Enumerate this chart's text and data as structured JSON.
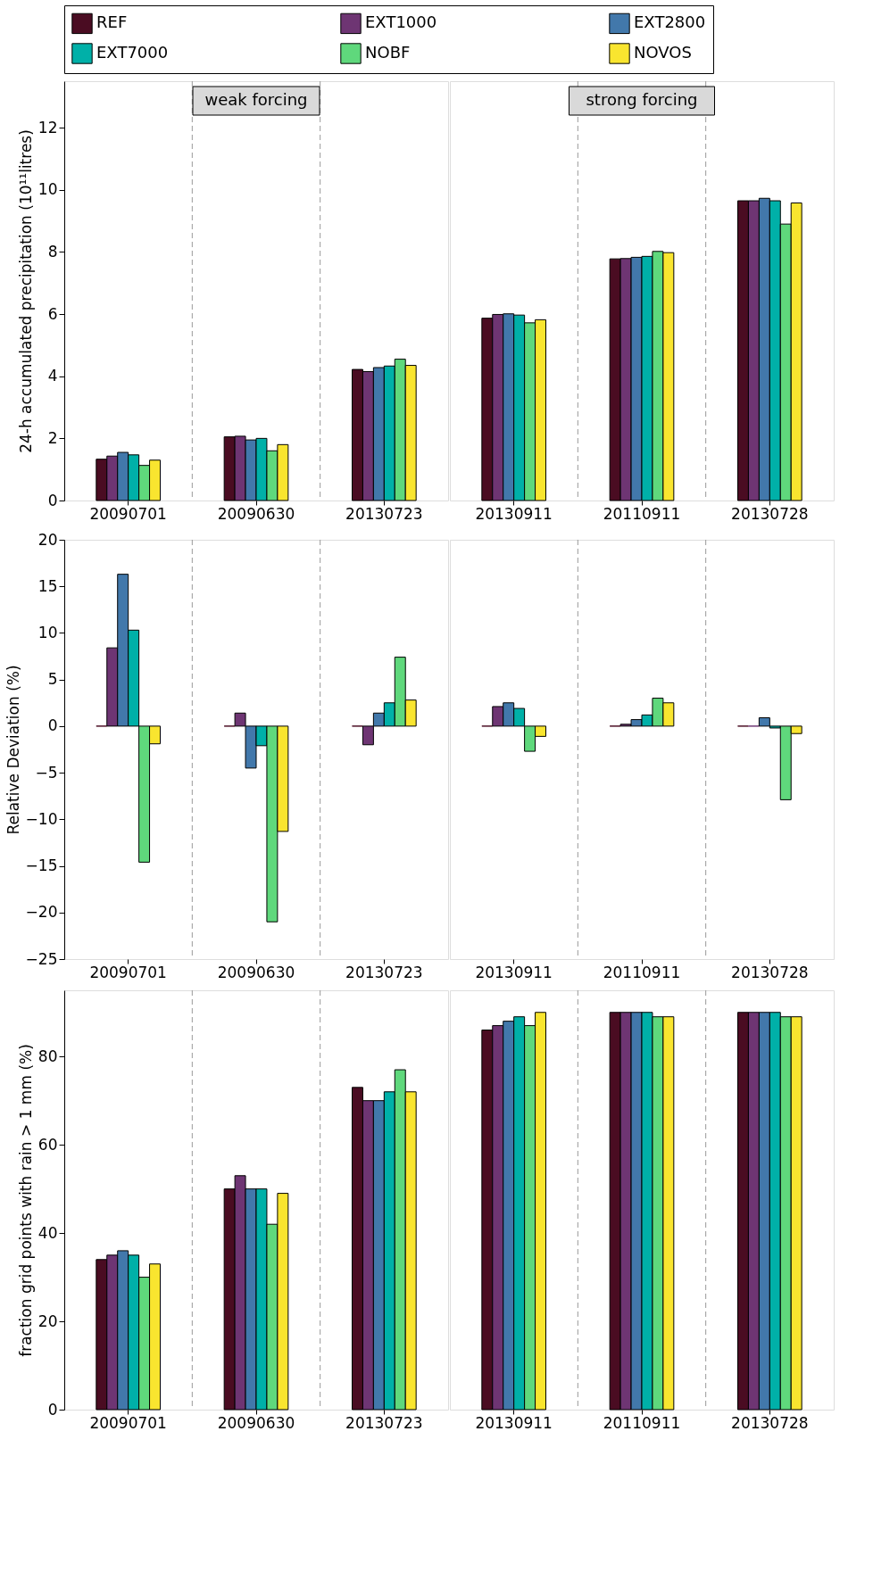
{
  "chart_data": [
    {
      "type": "bar",
      "ylabel": "24-h accumulated precipitation (10¹¹litres)",
      "categories": [
        "20090701",
        "20090630",
        "20130723"
      ],
      "ylim": [
        0,
        13.5
      ],
      "yticks": [
        0,
        2,
        4,
        6,
        8,
        10,
        12
      ],
      "legend": "top",
      "annotations": [
        "weak forcing"
      ],
      "series": [
        {
          "name": "REF",
          "color": "#4a0c22",
          "values": [
            1.33,
            2.05,
            4.22
          ]
        },
        {
          "name": "EXT1000",
          "color": "#6e3573",
          "values": [
            1.43,
            2.07,
            4.15
          ]
        },
        {
          "name": "EXT2800",
          "color": "#4278ab",
          "values": [
            1.55,
            1.95,
            4.28
          ]
        },
        {
          "name": "EXT7000",
          "color": "#00b0a8",
          "values": [
            1.47,
            2.0,
            4.33
          ]
        },
        {
          "name": "NOBF",
          "color": "#5fd87c",
          "values": [
            1.13,
            1.6,
            4.55
          ]
        },
        {
          "name": "NOVOS",
          "color": "#f9e52f",
          "values": [
            1.3,
            1.8,
            4.35
          ]
        }
      ]
    },
    {
      "type": "bar",
      "categories": [
        "20130911",
        "20110911",
        "20130728"
      ],
      "ylim": [
        0,
        13.5
      ],
      "tick_labels": "x",
      "annotations": [
        "strong forcing"
      ],
      "series": [
        {
          "color": "#4a0c22",
          "values": [
            5.87,
            7.78,
            9.65
          ]
        },
        {
          "color": "#6e3573",
          "values": [
            5.99,
            7.79,
            9.65
          ]
        },
        {
          "color": "#4278ab",
          "values": [
            6.01,
            7.83,
            9.73
          ]
        },
        {
          "color": "#00b0a8",
          "values": [
            5.97,
            7.86,
            9.65
          ]
        },
        {
          "color": "#5fd87c",
          "values": [
            5.72,
            8.02,
            8.9
          ]
        },
        {
          "color": "#f9e52f",
          "values": [
            5.82,
            7.98,
            9.58
          ]
        }
      ]
    },
    {
      "type": "bar",
      "ylabel": "Relative Deviation (%)",
      "categories": [
        "20090701",
        "20090630",
        "20130723"
      ],
      "ylim": [
        -25,
        20
      ],
      "yticks": [
        {
          "value": -25,
          "label": "−25"
        },
        {
          "value": -20,
          "label": "−20"
        },
        {
          "value": -15,
          "label": "−15"
        },
        {
          "value": -10,
          "label": "−10"
        },
        {
          "value": -5,
          "label": "−5"
        },
        0,
        5,
        10,
        15,
        20
      ],
      "series": [
        {
          "color": "#4a0c22",
          "values": [
            0,
            0,
            0
          ]
        },
        {
          "color": "#6e3573",
          "values": [
            8.4,
            1.4,
            -2.0
          ]
        },
        {
          "color": "#4278ab",
          "values": [
            16.3,
            -4.5,
            1.4
          ]
        },
        {
          "color": "#00b0a8",
          "values": [
            10.3,
            -2.1,
            2.5
          ]
        },
        {
          "color": "#5fd87c",
          "values": [
            -14.6,
            -21,
            7.4
          ]
        },
        {
          "color": "#f9e52f",
          "values": [
            -1.9,
            -11.3,
            2.8
          ]
        }
      ]
    },
    {
      "type": "bar",
      "categories": [
        "20130911",
        "20110911",
        "20130728"
      ],
      "ylim": [
        -25,
        20
      ],
      "tick_labels": "x",
      "series": [
        {
          "color": "#4a0c22",
          "values": [
            0,
            0,
            0
          ]
        },
        {
          "color": "#6e3573",
          "values": [
            2.1,
            0.2,
            0.0
          ]
        },
        {
          "color": "#4278ab",
          "values": [
            2.5,
            0.7,
            0.9
          ]
        },
        {
          "color": "#00b0a8",
          "values": [
            1.9,
            1.2,
            -0.2
          ]
        },
        {
          "color": "#5fd87c",
          "values": [
            -2.7,
            3.0,
            -7.9
          ]
        },
        {
          "color": "#f9e52f",
          "values": [
            -1.1,
            2.5,
            -0.8
          ]
        }
      ]
    },
    {
      "type": "bar",
      "ylabel": "fraction grid points with rain  > 1 mm (%)",
      "categories": [
        "20090701",
        "20090630",
        "20130723"
      ],
      "ylim": [
        0,
        95
      ],
      "yticks": [
        0,
        20,
        40,
        60,
        80
      ],
      "series": [
        {
          "color": "#4a0c22",
          "values": [
            34,
            50,
            73
          ]
        },
        {
          "color": "#6e3573",
          "values": [
            35,
            53,
            70
          ]
        },
        {
          "color": "#4278ab",
          "values": [
            36,
            50,
            70
          ]
        },
        {
          "color": "#00b0a8",
          "values": [
            35,
            50,
            72
          ]
        },
        {
          "color": "#5fd87c",
          "values": [
            30,
            42,
            77
          ]
        },
        {
          "color": "#f9e52f",
          "values": [
            33,
            49,
            72
          ]
        }
      ]
    },
    {
      "type": "bar",
      "categories": [
        "20130911",
        "20110911",
        "20130728"
      ],
      "ylim": [
        0,
        95
      ],
      "tick_labels": "x",
      "series": [
        {
          "color": "#4a0c22",
          "values": [
            86,
            90,
            90
          ]
        },
        {
          "color": "#6e3573",
          "values": [
            87,
            90,
            90
          ]
        },
        {
          "color": "#4278ab",
          "values": [
            88,
            90,
            90
          ]
        },
        {
          "color": "#00b0a8",
          "values": [
            89,
            90,
            90
          ]
        },
        {
          "color": "#5fd87c",
          "values": [
            87,
            89,
            89
          ]
        },
        {
          "color": "#f9e52f",
          "values": [
            90,
            89,
            89
          ]
        }
      ]
    }
  ]
}
